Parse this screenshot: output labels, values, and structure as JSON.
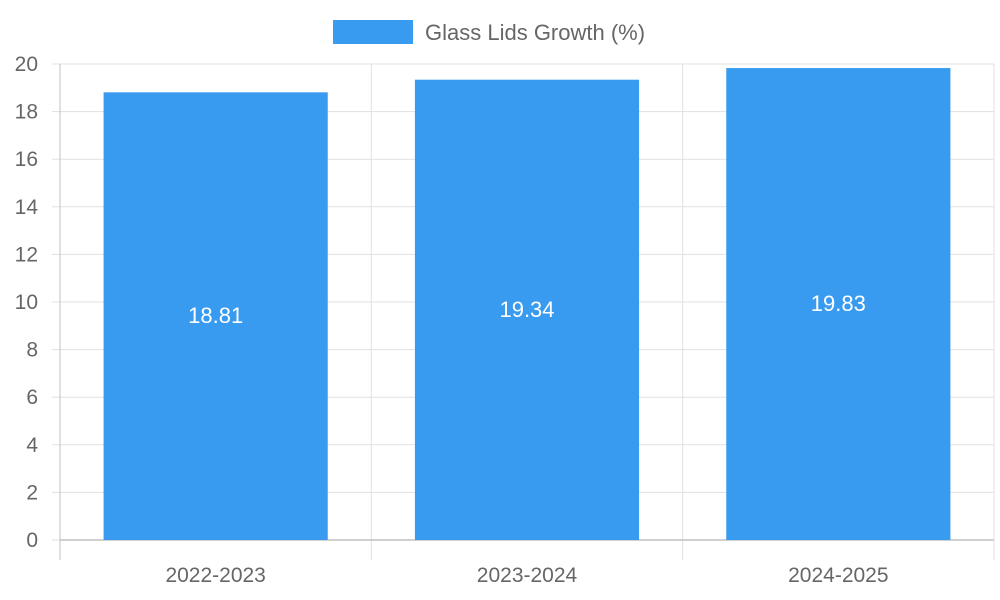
{
  "chart_data": {
    "type": "bar",
    "categories": [
      "2022-2023",
      "2023-2024",
      "2024-2025"
    ],
    "series": [
      {
        "name": "Glass Lids Growth (%)",
        "values": [
          18.81,
          19.34,
          19.83
        ]
      }
    ],
    "data_labels": [
      "18.81",
      "19.34",
      "19.83"
    ],
    "y_ticks": [
      "0",
      "2",
      "4",
      "6",
      "8",
      "10",
      "12",
      "14",
      "16",
      "18",
      "20"
    ],
    "ylim": [
      0,
      20
    ],
    "grid": true,
    "legend_position": "top",
    "bar_color": "#389bf0"
  }
}
